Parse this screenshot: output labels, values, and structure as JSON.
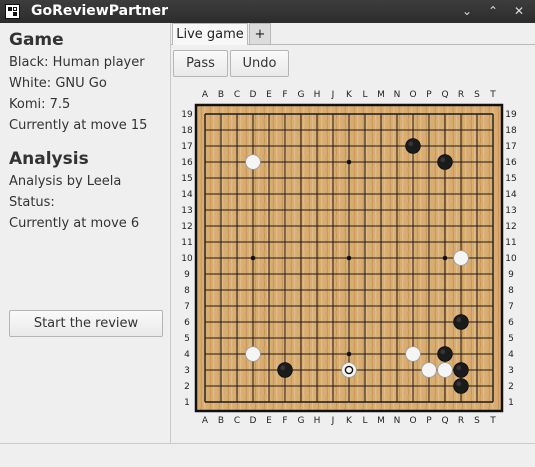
{
  "window": {
    "title": "GoReviewPartner",
    "buttons": [
      "⌄",
      "⌃",
      "✕"
    ]
  },
  "game_panel": {
    "heading": "Game",
    "black": "Black: Human player",
    "white": "White: GNU Go",
    "komi": "Komi: 7.5",
    "move": "Currently at move 15"
  },
  "analysis_panel": {
    "heading": "Analysis",
    "by": "Analysis by Leela",
    "status": "Status:",
    "move": "Currently at move 6"
  },
  "review_button": "Start the review",
  "tabs": {
    "live": "Live game",
    "add": "+"
  },
  "toolbar": {
    "pass": "Pass",
    "undo": "Undo"
  },
  "board": {
    "size": 19,
    "columns": [
      "A",
      "B",
      "C",
      "D",
      "E",
      "F",
      "G",
      "H",
      "J",
      "K",
      "L",
      "M",
      "N",
      "O",
      "P",
      "Q",
      "R",
      "S",
      "T"
    ],
    "hoshi": [
      "D16",
      "K16",
      "Q16",
      "D10",
      "K10",
      "Q10",
      "D4",
      "K4",
      "Q4"
    ],
    "stones": [
      {
        "color": "black",
        "pos": "O17"
      },
      {
        "color": "black",
        "pos": "Q16"
      },
      {
        "color": "white",
        "pos": "D16"
      },
      {
        "color": "white",
        "pos": "R10"
      },
      {
        "color": "black",
        "pos": "R6"
      },
      {
        "color": "white",
        "pos": "D4"
      },
      {
        "color": "white",
        "pos": "O4"
      },
      {
        "color": "black",
        "pos": "Q4"
      },
      {
        "color": "black",
        "pos": "F3"
      },
      {
        "color": "white",
        "pos": "K3",
        "last_move": true
      },
      {
        "color": "white",
        "pos": "P3"
      },
      {
        "color": "white",
        "pos": "Q3"
      },
      {
        "color": "black",
        "pos": "R3"
      },
      {
        "color": "black",
        "pos": "R2"
      }
    ],
    "colors": {
      "wood": "#d9ad72",
      "line": "#1a1a1a",
      "black_stone": "#1b1b1b",
      "white_stone": "#f5f5f5"
    }
  }
}
